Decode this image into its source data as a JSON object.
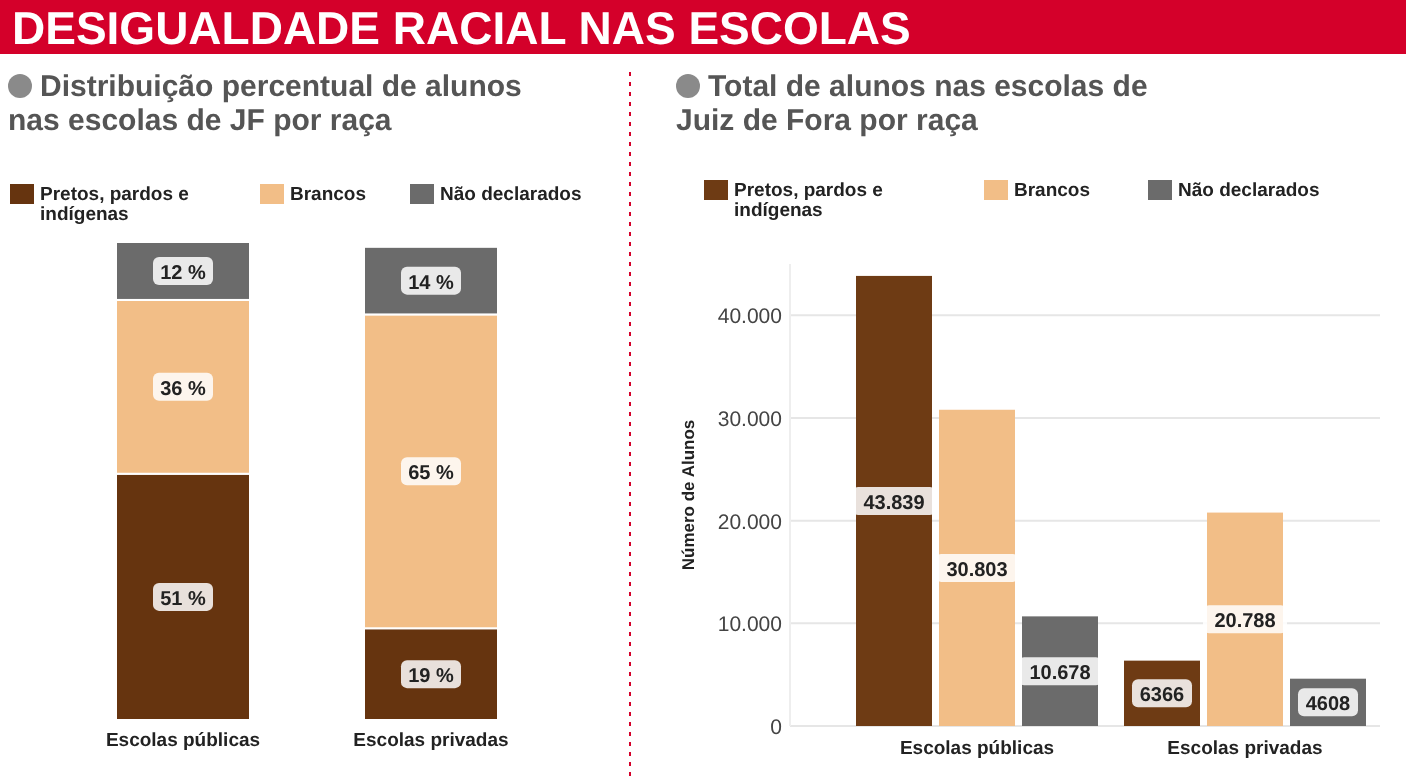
{
  "chart_data": [
    {
      "type": "bar",
      "stacked": true,
      "title": "Distribuição percentual de alunos nas escolas de JF por raça",
      "annotations": [
        "DESIGUALDADE RACIAL NAS ESCOLAS"
      ],
      "legend": "top",
      "categories": [
        "Escolas públicas",
        "Escolas privadas"
      ],
      "series": [
        {
          "name": "Pretos, pardos e indígenas",
          "color": "#66340f",
          "values": [
            51,
            19
          ],
          "value_labels": [
            "51 %",
            "19 %"
          ]
        },
        {
          "name": "Brancos",
          "color": "#f2be87",
          "values": [
            36,
            65
          ],
          "value_labels": [
            "36 %",
            "65 %"
          ]
        },
        {
          "name": "Não declarados",
          "color": "#6b6b6b",
          "values": [
            12,
            14
          ],
          "value_labels": [
            "12 %",
            "14 %"
          ]
        }
      ]
    },
    {
      "type": "bar",
      "title": "Total de alunos nas escolas de Juiz de Fora por raça",
      "ylabel": "Número de Alunos",
      "legend": "top",
      "grid": "y",
      "categories": [
        "Escolas públicas",
        "Escolas privadas"
      ],
      "ylim": [
        0,
        45000
      ],
      "yticks": [
        0,
        {
          "value": 10000,
          "label": "10.000"
        },
        {
          "value": 20000,
          "label": "20.000"
        },
        {
          "value": 30000,
          "label": "30.000"
        },
        {
          "value": 40000,
          "label": "40.000"
        }
      ],
      "series": [
        {
          "name": "Pretos, pardos e indígenas",
          "color": "#6e3b14",
          "values": [
            43839,
            6366
          ],
          "value_labels": [
            "43.839",
            "6366"
          ]
        },
        {
          "name": "Brancos",
          "color": "#f2be87",
          "values": [
            30803,
            20788
          ],
          "value_labels": [
            "30.803",
            "20.788"
          ]
        },
        {
          "name": "Não declarados",
          "color": "#6b6b6b",
          "values": [
            10678,
            4608
          ],
          "value_labels": [
            "10.678",
            "4608"
          ]
        }
      ]
    }
  ]
}
